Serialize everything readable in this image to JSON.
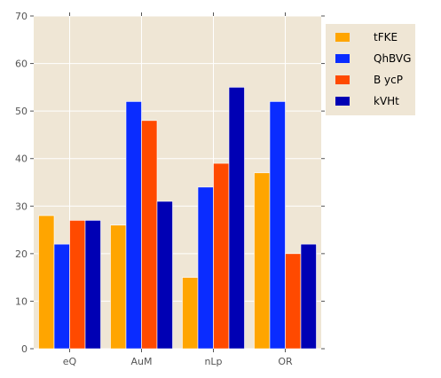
{
  "chart_data": {
    "type": "bar",
    "categories": [
      "eQ",
      "AuM",
      "nLp",
      "OR"
    ],
    "series": [
      {
        "name": "tFKE",
        "values": [
          28,
          26,
          15,
          37
        ]
      },
      {
        "name": "QhBVG",
        "values": [
          22,
          52,
          34,
          52
        ]
      },
      {
        "name": "B ycP",
        "values": [
          27,
          48,
          39,
          20
        ]
      },
      {
        "name": "kVHt",
        "values": [
          27,
          31,
          55,
          22
        ]
      }
    ],
    "title": "",
    "xlabel": "",
    "ylabel": "",
    "ylim": [
      0,
      70
    ],
    "yticks": [
      0,
      10,
      20,
      30,
      40,
      50,
      60,
      70
    ],
    "grid": true,
    "legend_position": "top-right, outside plot",
    "colors": {
      "plot_background": "#efe6d5",
      "grid": "#ffffff",
      "axis_text": "#555555",
      "series": [
        "#ffa500",
        "#0a2cff",
        "#ff4a00",
        "#0000b4"
      ]
    }
  }
}
